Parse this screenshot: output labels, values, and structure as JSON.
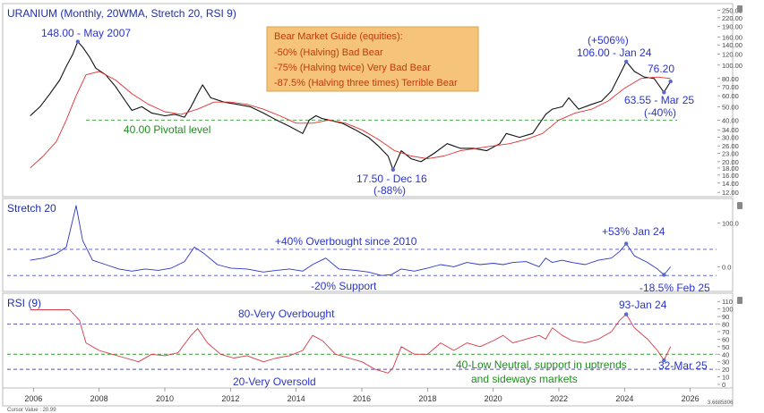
{
  "chart_data": [
    {
      "type": "line",
      "panel": "price",
      "title": "URANIUM (Monthly, 20WMA, Stretch 20, RSI 9)",
      "y_scale": "log",
      "ylim": [
        11.5,
        255
      ],
      "y_ticks": [
        "250.00",
        "220.00",
        "190.00",
        "160.00",
        "140.00",
        "120.00",
        "100.00",
        "80.00",
        "70.00",
        "60.00",
        "50.00",
        "40.00",
        "34.00",
        "30.00",
        "26.00",
        "23.00",
        "20.00",
        "18.00",
        "16.00",
        "14.00",
        "12.00"
      ],
      "series": [
        {
          "x": [
            2005.9,
            2006.2,
            2006.5,
            2006.8,
            2007.0,
            2007.2,
            2007.35,
            2007.5,
            2007.7,
            2007.9,
            2008.2,
            2008.5,
            2008.8,
            2009.0,
            2009.3,
            2009.6,
            2010.0,
            2010.3,
            2010.6,
            2010.8,
            2011.0,
            2011.15,
            2011.4,
            2011.8,
            2012.2,
            2012.6,
            2013.0,
            2013.4,
            2013.8,
            2014.2,
            2014.4,
            2014.6,
            2014.8,
            2015.0,
            2015.4,
            2015.8,
            2016.2,
            2016.5,
            2016.8,
            2016.95,
            2017.2,
            2017.5,
            2017.8,
            2018.2,
            2018.6,
            2019.0,
            2019.4,
            2019.8,
            2020.2,
            2020.4,
            2020.8,
            2021.2,
            2021.6,
            2021.8,
            2022.1,
            2022.3,
            2022.6,
            2023.0,
            2023.3,
            2023.6,
            2023.85,
            2024.05,
            2024.3,
            2024.6,
            2024.9,
            2025.2,
            2025.4
          ],
          "y": [
            43,
            50,
            62,
            78,
            98,
            120,
            148,
            135,
            115,
            95,
            85,
            70,
            55,
            47,
            50,
            45,
            43,
            44,
            42,
            50,
            62,
            72,
            58,
            54,
            52,
            50,
            45,
            40,
            36,
            32,
            40,
            43,
            41,
            40,
            38,
            34,
            30,
            26,
            22,
            17.5,
            24,
            21,
            20,
            23,
            27,
            25,
            25,
            24,
            27,
            32,
            30,
            32,
            44,
            48,
            50,
            58,
            48,
            52,
            55,
            65,
            85,
            106,
            90,
            82,
            80,
            63.55,
            76.2
          ]
        },
        {
          "name": "20WMA",
          "color": "#e03030",
          "x": [
            2005.9,
            2006.3,
            2006.7,
            2007.0,
            2007.3,
            2007.6,
            2008.0,
            2008.5,
            2009.0,
            2009.5,
            2010.0,
            2010.5,
            2011.0,
            2011.5,
            2012.0,
            2012.5,
            2013.0,
            2013.5,
            2014.0,
            2014.5,
            2015.0,
            2015.5,
            2016.0,
            2016.5,
            2017.0,
            2017.5,
            2018.0,
            2018.5,
            2019.0,
            2019.5,
            2020.0,
            2020.5,
            2021.0,
            2021.5,
            2022.0,
            2022.5,
            2023.0,
            2023.5,
            2024.0,
            2024.5,
            2025.0,
            2025.4
          ],
          "y": [
            18,
            22,
            28,
            40,
            60,
            85,
            90,
            78,
            62,
            52,
            46,
            44,
            48,
            54,
            54,
            52,
            48,
            43,
            38,
            38,
            40,
            38,
            34,
            29,
            24,
            22,
            21,
            22,
            24,
            25,
            26,
            27,
            29,
            32,
            40,
            45,
            48,
            55,
            68,
            80,
            82,
            80
          ]
        }
      ],
      "annotations": [
        {
          "text": "148.00 - May 2007",
          "x": 2007.35,
          "y": 148
        },
        {
          "text": "(+506%)",
          "x": 2024.0,
          "y": 140
        },
        {
          "text": "106.00 - Jan 24",
          "x": 2024.05,
          "y": 106
        },
        {
          "text": "76.20",
          "x": 2025.4,
          "y": 76.2
        },
        {
          "text": "63.55 - Mar 25",
          "x": 2025.2,
          "y": 63.55
        },
        {
          "text": "(-40%)",
          "x": 2025.2,
          "y": 52
        },
        {
          "text": "40.00 Pivotal level",
          "x": 2008.5,
          "y": 40
        },
        {
          "text": "17.50 - Dec 16",
          "x": 2016.95,
          "y": 17.5
        },
        {
          "text": "(-88%)",
          "x": 2016.95,
          "y": 15
        }
      ],
      "reference_lines": [
        {
          "y": 40,
          "style": "dashed",
          "color": "#2e9e2e"
        }
      ],
      "info_box": {
        "title": "Bear Market Guide (equities):",
        "lines": [
          "-50% (Halving) Bad Bear",
          "-75% (Halving twice) Very Bad Bear",
          "-87.5% (Halving three times) Terrible Bear"
        ]
      }
    },
    {
      "type": "line",
      "panel": "stretch",
      "title": "Stretch 20",
      "ylim": [
        -40,
        140
      ],
      "y_ticks": [
        "100.0",
        "0.0"
      ],
      "series": [
        {
          "color": "#2a35c8",
          "x": [
            2005.9,
            2006.3,
            2006.7,
            2007.0,
            2007.3,
            2007.5,
            2007.8,
            2008.2,
            2008.6,
            2009.0,
            2009.4,
            2009.8,
            2010.2,
            2010.6,
            2010.9,
            2011.2,
            2011.6,
            2012.0,
            2012.5,
            2013.0,
            2013.4,
            2013.8,
            2014.2,
            2014.5,
            2014.9,
            2015.3,
            2015.8,
            2016.2,
            2016.6,
            2016.9,
            2017.2,
            2017.6,
            2018.0,
            2018.4,
            2018.8,
            2019.2,
            2019.6,
            2020.0,
            2020.3,
            2020.6,
            2021.0,
            2021.4,
            2021.6,
            2021.8,
            2022.1,
            2022.4,
            2022.8,
            2023.2,
            2023.6,
            2023.85,
            2024.05,
            2024.3,
            2024.7,
            2025.0,
            2025.2,
            2025.4
          ],
          "y": [
            15,
            20,
            30,
            45,
            140,
            60,
            15,
            5,
            -5,
            -10,
            -5,
            -8,
            -3,
            12,
            45,
            30,
            5,
            -3,
            -5,
            -12,
            -8,
            -5,
            -10,
            5,
            20,
            -5,
            -8,
            -12,
            -20,
            -18,
            -5,
            -10,
            -3,
            5,
            0,
            10,
            5,
            8,
            5,
            10,
            12,
            0,
            20,
            10,
            15,
            10,
            5,
            15,
            20,
            35,
            53,
            25,
            10,
            -5,
            -18.5,
            0
          ]
        }
      ],
      "annotations": [
        {
          "text": "+40% Overbought since 2010",
          "x": 2012.5,
          "y": 53
        },
        {
          "text": "+53% Jan 24",
          "x": 2024.05,
          "y": 53
        },
        {
          "text": "-20% Support",
          "x": 2015.0,
          "y": -40
        },
        {
          "text": "-18.5% Feb 25",
          "x": 2025.2,
          "y": -18.5
        }
      ],
      "reference_lines": [
        {
          "y": 40,
          "style": "dashed",
          "color": "#5050c8"
        },
        {
          "y": -20,
          "style": "dashed",
          "color": "#5050c8"
        }
      ]
    },
    {
      "type": "line",
      "panel": "rsi",
      "title": "RSI (9)",
      "ylim": [
        0,
        115
      ],
      "y_ticks": [
        "110",
        "100",
        "90",
        "80",
        "70",
        "60",
        "50",
        "40",
        "30",
        "20",
        "10",
        "0"
      ],
      "series": [
        {
          "color": "#d83848",
          "x": [
            2005.9,
            2006.5,
            2007.1,
            2007.4,
            2007.6,
            2008.0,
            2008.4,
            2008.8,
            2009.2,
            2009.6,
            2010.0,
            2010.4,
            2010.8,
            2011.0,
            2011.3,
            2011.7,
            2012.1,
            2012.5,
            2013.0,
            2013.4,
            2013.8,
            2014.2,
            2014.5,
            2014.8,
            2015.2,
            2015.6,
            2016.0,
            2016.4,
            2016.8,
            2016.95,
            2017.2,
            2017.6,
            2018.0,
            2018.4,
            2018.8,
            2019.2,
            2019.6,
            2020.0,
            2020.3,
            2020.6,
            2021.0,
            2021.4,
            2021.6,
            2021.8,
            2022.1,
            2022.4,
            2022.8,
            2023.2,
            2023.6,
            2023.85,
            2024.05,
            2024.3,
            2024.7,
            2025.0,
            2025.2,
            2025.4
          ],
          "y": [
            99,
            99,
            99,
            85,
            55,
            45,
            40,
            35,
            30,
            40,
            38,
            42,
            65,
            74,
            55,
            40,
            35,
            38,
            30,
            35,
            38,
            45,
            65,
            58,
            40,
            35,
            30,
            20,
            15,
            22,
            50,
            40,
            40,
            55,
            45,
            55,
            50,
            58,
            65,
            55,
            60,
            65,
            60,
            75,
            65,
            58,
            55,
            60,
            70,
            85,
            93,
            75,
            60,
            45,
            32,
            50
          ]
        }
      ],
      "annotations": [
        {
          "text": "80-Very Overbought",
          "x": 2012.0,
          "y": 80
        },
        {
          "text": "93-Jan 24",
          "x": 2024.05,
          "y": 93
        },
        {
          "text": "40-Low Neutral, support in uptrends",
          "x": 2022.5,
          "y": 40
        },
        {
          "text": "and sideways markets",
          "x": 2022.5,
          "y": 40
        },
        {
          "text": "20-Very Oversold",
          "x": 2012.0,
          "y": 20
        },
        {
          "text": "32-Mar 25",
          "x": 2025.2,
          "y": 32
        }
      ],
      "reference_lines": [
        {
          "y": 80,
          "style": "dashed",
          "color": "#5050c8"
        },
        {
          "y": 40,
          "style": "dashed",
          "color": "#2e9e2e"
        },
        {
          "y": 20,
          "style": "dashed",
          "color": "#5050c8"
        }
      ]
    }
  ],
  "x_axis": {
    "xlim": [
      2005.2,
      2026.8
    ],
    "ticks": [
      "2006",
      "2008",
      "2010",
      "2012",
      "2014",
      "2016",
      "2018",
      "2020",
      "2022",
      "2024",
      "2026"
    ]
  },
  "footer": {
    "cursor_value": "Cursor Value : 20.99"
  },
  "bottom_right_label": "3.6685806"
}
